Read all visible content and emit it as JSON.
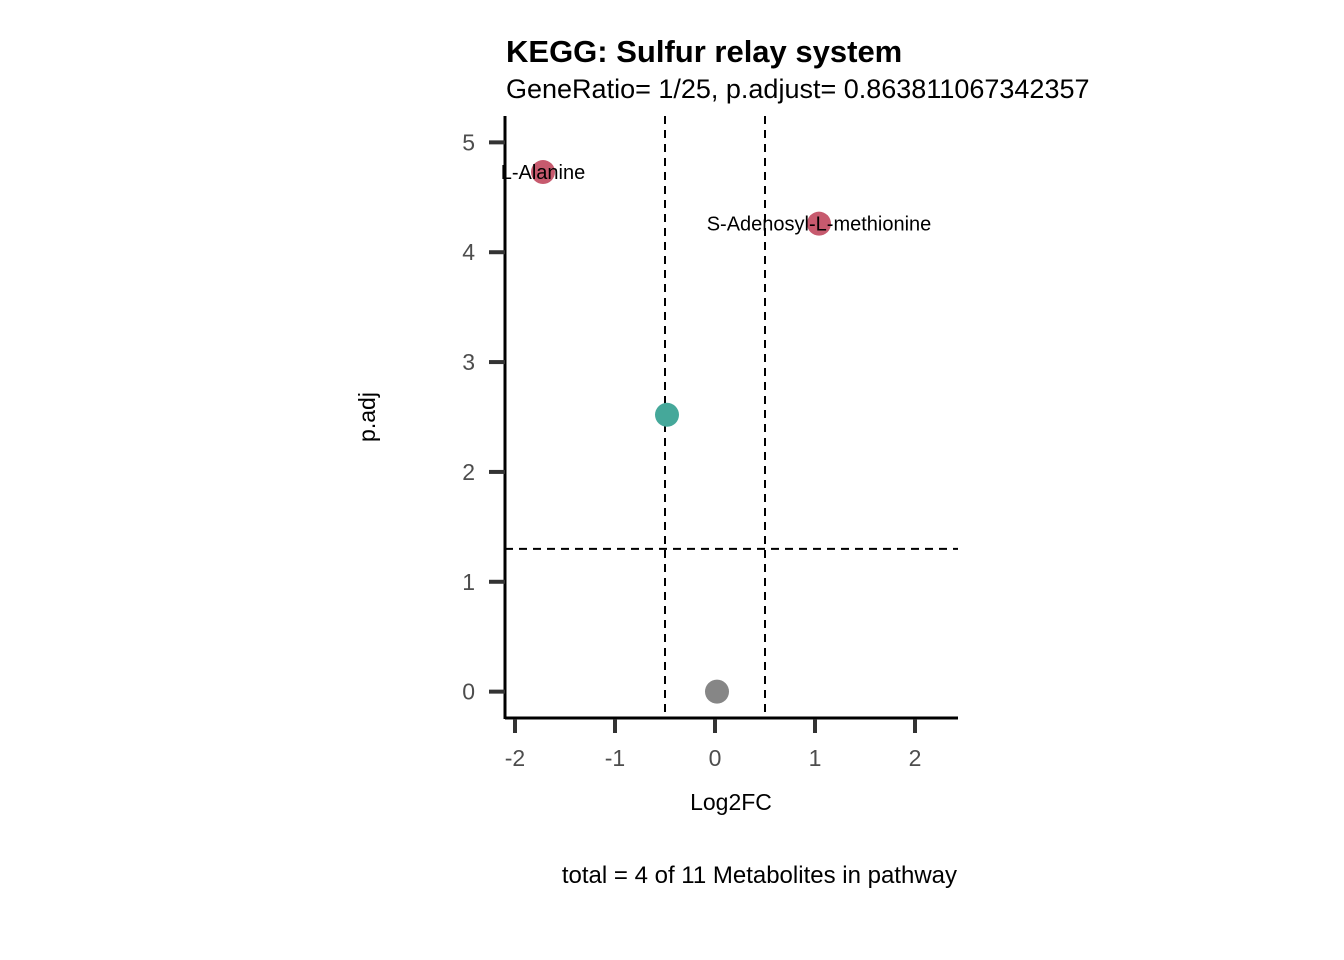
{
  "chart_data": {
    "type": "scatter",
    "title": "KEGG: Sulfur relay system",
    "subtitle": "GeneRatio= 1/25, p.adjust= 0.863811067342357",
    "xlabel": "Log2FC",
    "ylabel": "p.adj",
    "caption": "total = 4 of 11 Metabolites in pathway",
    "xlim": [
      -2.1,
      2.43
    ],
    "ylim": [
      -0.24,
      5.24
    ],
    "x_ticks": [
      -2,
      -1,
      0,
      1,
      2
    ],
    "x_tick_labels": [
      "-2",
      "-1",
      "0",
      "1",
      "2"
    ],
    "y_ticks": [
      0,
      1,
      2,
      3,
      4,
      5
    ],
    "y_tick_labels": [
      "0",
      "1",
      "2",
      "3",
      "4",
      "5"
    ],
    "grid": false,
    "thresholds": {
      "vertical": [
        -0.5,
        0.5
      ],
      "horizontal": [
        1.3
      ]
    },
    "points": [
      {
        "x": -1.72,
        "y": 4.73,
        "label": "L-Alanine",
        "color": "#c75a6e"
      },
      {
        "x": 1.04,
        "y": 4.26,
        "label": "S-Adenosyl-L-methionine",
        "color": "#c75a6e"
      },
      {
        "x": -0.48,
        "y": 2.52,
        "label": "",
        "color": "#45a89a"
      },
      {
        "x": 0.02,
        "y": 0.0,
        "label": "",
        "color": "#868686"
      }
    ]
  }
}
